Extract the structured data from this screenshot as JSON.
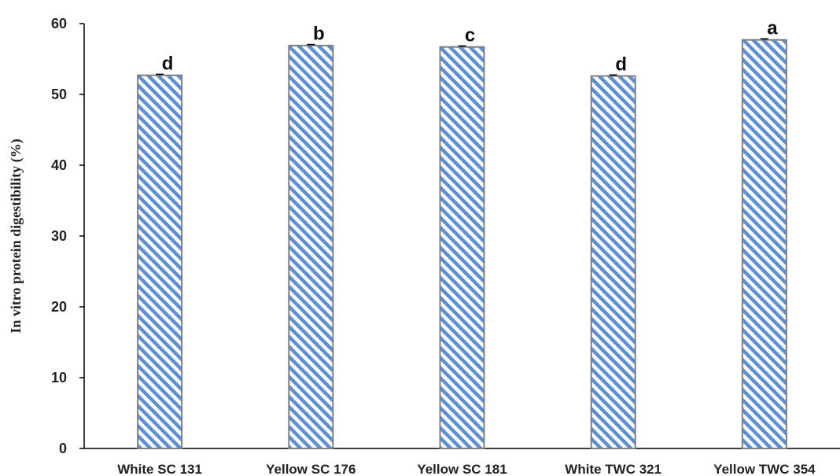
{
  "chart_data": {
    "type": "bar",
    "title": "",
    "xlabel": "",
    "ylabel": "In vitro protein digestibility  (%)",
    "ylim": [
      0,
      60
    ],
    "yticks": [
      0,
      10,
      20,
      30,
      40,
      50,
      60
    ],
    "grid": false,
    "legend": "none",
    "categories": [
      "White SC 131",
      "Yellow SC 176",
      "Yellow SC 181",
      "White TWC 321",
      "Yellow TWC 354"
    ],
    "values": [
      52.7,
      56.9,
      56.7,
      52.6,
      57.7
    ],
    "errors": [
      0.15,
      0.15,
      0.15,
      0.15,
      0.15
    ],
    "significance_letters": [
      "d",
      "b",
      "c",
      "d",
      "a"
    ],
    "bar_fill": "diagonal-hatch",
    "colors": {
      "hatch": "#5b8fd6",
      "bar_edge": "#7f7f7f",
      "axis": "#000000"
    }
  }
}
